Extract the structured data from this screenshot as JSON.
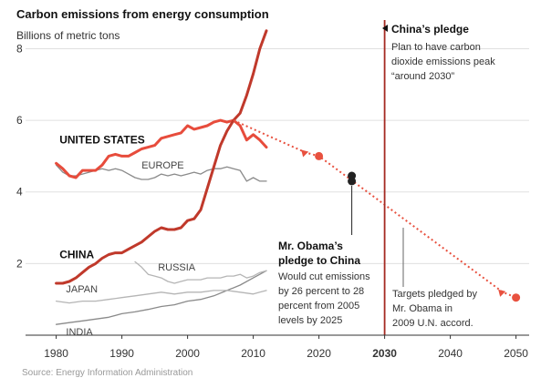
{
  "chart_data": {
    "type": "line",
    "title": "Carbon emissions from energy consumption",
    "ylabel": "Billions of metric tons",
    "xlim": [
      1977,
      2052
    ],
    "ylim": [
      0,
      8.8
    ],
    "x_ticks": [
      1980,
      1990,
      2000,
      2010,
      2020,
      2030,
      2040,
      2050
    ],
    "y_ticks": [
      2,
      4,
      6,
      8
    ],
    "grid": "horizontal",
    "colors": {
      "china": "#c0392b",
      "united_states": "#e74c3c",
      "projection": "#e8513f",
      "pledge_line": "#a52a22",
      "other": "#8a8a8a",
      "other_light": "#b5b5b5",
      "gridline": "#e0e0e0"
    },
    "series": [
      {
        "name": "CHINA",
        "style": "bold-dark-red",
        "x": [
          1980,
          1981,
          1982,
          1983,
          1984,
          1985,
          1986,
          1987,
          1988,
          1989,
          1990,
          1991,
          1992,
          1993,
          1994,
          1995,
          1996,
          1997,
          1998,
          1999,
          2000,
          2001,
          2002,
          2003,
          2004,
          2005,
          2006,
          2007,
          2008,
          2009,
          2010,
          2011,
          2012
        ],
        "y": [
          1.45,
          1.45,
          1.5,
          1.6,
          1.75,
          1.9,
          2.0,
          2.15,
          2.25,
          2.3,
          2.3,
          2.4,
          2.5,
          2.6,
          2.75,
          2.9,
          3.0,
          2.95,
          2.95,
          3.0,
          3.2,
          3.25,
          3.5,
          4.1,
          4.7,
          5.3,
          5.7,
          6.0,
          6.2,
          6.7,
          7.3,
          8.0,
          8.5
        ]
      },
      {
        "name": "UNITED STATES",
        "style": "bold-red",
        "x": [
          1980,
          1981,
          1982,
          1983,
          1984,
          1985,
          1986,
          1987,
          1988,
          1989,
          1990,
          1991,
          1992,
          1993,
          1994,
          1995,
          1996,
          1997,
          1998,
          1999,
          2000,
          2001,
          2002,
          2003,
          2004,
          2005,
          2006,
          2007,
          2008,
          2009,
          2010,
          2011,
          2012
        ],
        "y": [
          4.8,
          4.65,
          4.45,
          4.4,
          4.6,
          4.6,
          4.6,
          4.75,
          5.0,
          5.05,
          5.0,
          5.0,
          5.1,
          5.2,
          5.25,
          5.3,
          5.5,
          5.55,
          5.6,
          5.65,
          5.85,
          5.75,
          5.8,
          5.85,
          5.95,
          6.0,
          5.95,
          6.0,
          5.85,
          5.45,
          5.6,
          5.45,
          5.25
        ]
      },
      {
        "name": "EUROPE",
        "style": "gray",
        "x": [
          1980,
          1981,
          1982,
          1983,
          1984,
          1985,
          1986,
          1987,
          1988,
          1989,
          1990,
          1991,
          1992,
          1993,
          1994,
          1995,
          1996,
          1997,
          1998,
          1999,
          2000,
          2001,
          2002,
          2003,
          2004,
          2005,
          2006,
          2007,
          2008,
          2009,
          2010,
          2011,
          2012
        ],
        "y": [
          4.75,
          4.55,
          4.45,
          4.45,
          4.5,
          4.55,
          4.6,
          4.65,
          4.6,
          4.65,
          4.6,
          4.5,
          4.4,
          4.35,
          4.35,
          4.4,
          4.5,
          4.45,
          4.5,
          4.45,
          4.5,
          4.55,
          4.5,
          4.6,
          4.65,
          4.65,
          4.7,
          4.65,
          4.6,
          4.3,
          4.4,
          4.3,
          4.3
        ]
      },
      {
        "name": "RUSSIA",
        "style": "light-gray",
        "x": [
          1992,
          1993,
          1994,
          1995,
          1996,
          1997,
          1998,
          1999,
          2000,
          2001,
          2002,
          2003,
          2004,
          2005,
          2006,
          2007,
          2008,
          2009,
          2010,
          2011,
          2012
        ],
        "y": [
          2.05,
          1.9,
          1.7,
          1.65,
          1.6,
          1.5,
          1.45,
          1.5,
          1.55,
          1.55,
          1.55,
          1.6,
          1.6,
          1.6,
          1.65,
          1.65,
          1.7,
          1.6,
          1.65,
          1.75,
          1.8
        ]
      },
      {
        "name": "JAPAN",
        "style": "light-gray",
        "x": [
          1980,
          1982,
          1984,
          1986,
          1988,
          1990,
          1992,
          1994,
          1996,
          1998,
          2000,
          2002,
          2004,
          2006,
          2008,
          2010,
          2011,
          2012
        ],
        "y": [
          0.95,
          0.9,
          0.95,
          0.95,
          1.0,
          1.05,
          1.1,
          1.15,
          1.2,
          1.15,
          1.2,
          1.2,
          1.25,
          1.25,
          1.2,
          1.15,
          1.2,
          1.25
        ]
      },
      {
        "name": "INDIA",
        "style": "gray",
        "x": [
          1980,
          1982,
          1984,
          1986,
          1988,
          1990,
          1992,
          1994,
          1996,
          1998,
          2000,
          2002,
          2004,
          2006,
          2008,
          2010,
          2011,
          2012
        ],
        "y": [
          0.3,
          0.35,
          0.4,
          0.45,
          0.5,
          0.6,
          0.65,
          0.72,
          0.8,
          0.85,
          0.95,
          1.0,
          1.1,
          1.25,
          1.4,
          1.6,
          1.7,
          1.8
        ]
      }
    ],
    "projection": {
      "x": [
        2007,
        2018,
        2020,
        2048,
        2050
      ],
      "y": [
        6.0,
        5.1,
        5.0,
        1.2,
        1.05
      ],
      "markers": [
        {
          "x": 2018,
          "y": 5.1,
          "shape": "triangle"
        },
        {
          "x": 2020,
          "y": 5.0,
          "shape": "circle"
        },
        {
          "x": 2048,
          "y": 1.2,
          "shape": "triangle"
        },
        {
          "x": 2050,
          "y": 1.05,
          "shape": "circle"
        }
      ]
    },
    "us_pledge_points": [
      {
        "x": 2025,
        "y": 4.45
      },
      {
        "x": 2025,
        "y": 4.3
      }
    ],
    "pledge_year": 2030,
    "annotations": {
      "china_pledge": {
        "title": "China’s pledge",
        "lines": [
          "Plan to have carbon",
          "dioxide emissions peak",
          "“around 2030”"
        ]
      },
      "obama_china": {
        "title_lines": [
          "Mr. Obama’s",
          "pledge to China"
        ],
        "lines": [
          "Would cut emissions",
          "by 26 percent to 28",
          "percent from 2005",
          "levels by 2025"
        ]
      },
      "targets": {
        "lines": [
          "Targets pledged by",
          "Mr. Obama in",
          "2009 U.N. accord."
        ]
      }
    },
    "source_note": "Source: Energy Information Administration"
  }
}
